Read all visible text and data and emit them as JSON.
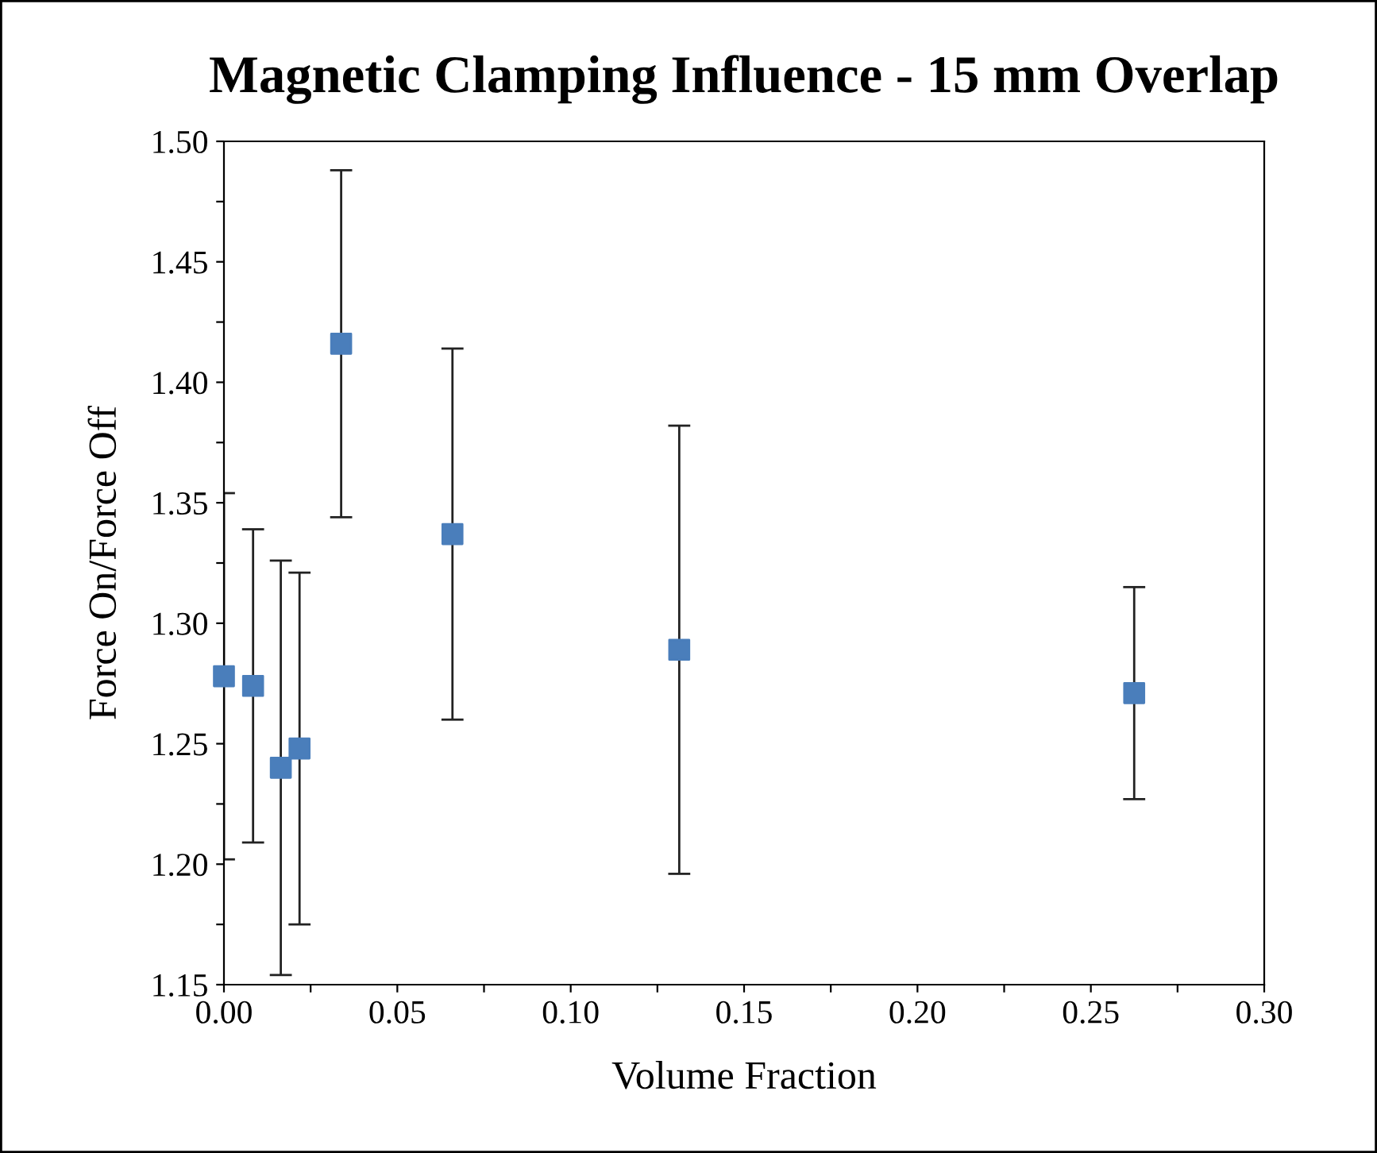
{
  "chart_data": {
    "type": "scatter",
    "title": "Magnetic Clamping Influence - 15 mm Overlap",
    "xlabel": "Volume Fraction",
    "ylabel": "Force On/Force Off",
    "x": [
      0.0,
      0.0084,
      0.0164,
      0.0218,
      0.0338,
      0.0659,
      0.1313,
      0.2625
    ],
    "values": [
      1.278,
      1.274,
      1.24,
      1.248,
      1.416,
      1.337,
      1.289,
      1.271
    ],
    "errors": [
      0.076,
      0.065,
      0.086,
      0.073,
      0.072,
      0.077,
      0.093,
      0.044
    ],
    "color": "#4a7ebb",
    "marker": "square",
    "grid": false,
    "xlim": [
      0,
      0.3
    ],
    "ylim": [
      1.15,
      1.5
    ],
    "xticks": [
      {
        "value": 0,
        "label": "0.00"
      },
      {
        "value": 0.025,
        "label": null
      },
      {
        "value": 0.05,
        "label": "0.05"
      },
      {
        "value": 0.075,
        "label": null
      },
      {
        "value": 0.1,
        "label": "0.10"
      },
      {
        "value": 0.125,
        "label": null
      },
      {
        "value": 0.15,
        "label": "0.15"
      },
      {
        "value": 0.175,
        "label": null
      },
      {
        "value": 0.2,
        "label": "0.20"
      },
      {
        "value": 0.225,
        "label": null
      },
      {
        "value": 0.25,
        "label": "0.25"
      },
      {
        "value": 0.275,
        "label": null
      },
      {
        "value": 0.3,
        "label": "0.30"
      }
    ],
    "yticks": [
      {
        "value": 1.15,
        "label": "1.15"
      },
      {
        "value": 1.175,
        "label": null
      },
      {
        "value": 1.2,
        "label": "1.20"
      },
      {
        "value": 1.225,
        "label": null
      },
      {
        "value": 1.25,
        "label": "1.25"
      },
      {
        "value": 1.275,
        "label": null
      },
      {
        "value": 1.3,
        "label": "1.30"
      },
      {
        "value": 1.325,
        "label": null
      },
      {
        "value": 1.35,
        "label": "1.35"
      },
      {
        "value": 1.375,
        "label": null
      },
      {
        "value": 1.4,
        "label": "1.40"
      },
      {
        "value": 1.425,
        "label": null
      },
      {
        "value": 1.45,
        "label": "1.45"
      },
      {
        "value": 1.475,
        "label": null
      },
      {
        "value": 1.5,
        "label": "1.50"
      }
    ]
  }
}
